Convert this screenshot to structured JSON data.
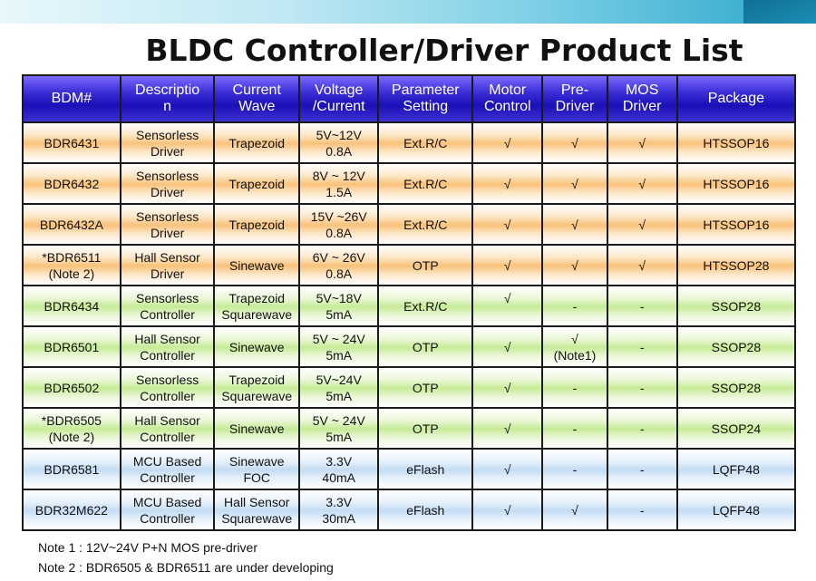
{
  "title": "BLDC Controller/Driver Product List",
  "header": [
    [
      "BDM#"
    ],
    [
      "Descriptio",
      "n"
    ],
    [
      "Current",
      "Wave"
    ],
    [
      "Voltage",
      "/Current"
    ],
    [
      "Parameter",
      "Setting"
    ],
    [
      "Motor",
      "Control"
    ],
    [
      "Pre-",
      "Driver"
    ],
    [
      "MOS",
      "Driver"
    ],
    [
      "Package"
    ]
  ],
  "rows": [
    {
      "theme": "orange",
      "cells": [
        [
          "BDR6431"
        ],
        [
          "Sensorless",
          "Driver"
        ],
        [
          "Trapezoid"
        ],
        [
          "5V~12V",
          "0.8A"
        ],
        [
          "Ext.R/C"
        ],
        [
          "√"
        ],
        [
          "√"
        ],
        [
          "√"
        ],
        [
          "HTSSOP16"
        ]
      ]
    },
    {
      "theme": "orange",
      "cells": [
        [
          "BDR6432"
        ],
        [
          "Sensorless",
          "Driver"
        ],
        [
          "Trapezoid"
        ],
        [
          "8V ~ 12V",
          "1.5A"
        ],
        [
          "Ext.R/C"
        ],
        [
          "√"
        ],
        [
          "√"
        ],
        [
          "√"
        ],
        [
          "HTSSOP16"
        ]
      ]
    },
    {
      "theme": "orange",
      "cells": [
        [
          "BDR6432A"
        ],
        [
          "Sensorless",
          "Driver"
        ],
        [
          "Trapezoid"
        ],
        [
          "15V ~26V",
          "0.8A"
        ],
        [
          "Ext.R/C"
        ],
        [
          "√"
        ],
        [
          "√"
        ],
        [
          "√"
        ],
        [
          "HTSSOP16"
        ]
      ]
    },
    {
      "theme": "orange",
      "cells": [
        [
          "*BDR6511",
          "(Note 2)"
        ],
        [
          "Hall Sensor",
          "Driver"
        ],
        [
          "Sinewave"
        ],
        [
          "6V ~ 26V",
          "0.8A"
        ],
        [
          "OTP"
        ],
        [
          "√"
        ],
        [
          "√"
        ],
        [
          "√"
        ],
        [
          "HTSSOP28"
        ]
      ]
    },
    {
      "theme": "green",
      "cells": [
        [
          "BDR6434"
        ],
        [
          "Sensorless",
          "Controller"
        ],
        [
          "Trapezoid",
          "Squarewave"
        ],
        [
          "5V~18V",
          "5mA"
        ],
        [
          "Ext.R/C"
        ],
        [
          "√",
          ""
        ],
        [
          "-"
        ],
        [
          "-"
        ],
        [
          "SSOP28"
        ]
      ]
    },
    {
      "theme": "green",
      "cells": [
        [
          "BDR6501"
        ],
        [
          "Hall Sensor",
          "Controller"
        ],
        [
          "Sinewave"
        ],
        [
          "5V ~ 24V",
          "5mA"
        ],
        [
          "OTP"
        ],
        [
          "√"
        ],
        [
          "√",
          "(Note1)"
        ],
        [
          "-"
        ],
        [
          "SSOP28"
        ]
      ]
    },
    {
      "theme": "green",
      "cells": [
        [
          "BDR6502"
        ],
        [
          "Sensorless",
          "Controller"
        ],
        [
          "Trapezoid",
          "Squarewave"
        ],
        [
          "5V~24V",
          "5mA"
        ],
        [
          "OTP"
        ],
        [
          "√"
        ],
        [
          "-"
        ],
        [
          "-"
        ],
        [
          "SSOP28"
        ]
      ]
    },
    {
      "theme": "green",
      "cells": [
        [
          "*BDR6505",
          "(Note 2)"
        ],
        [
          "Hall Sensor",
          "Controller"
        ],
        [
          "Sinewave"
        ],
        [
          "5V ~ 24V",
          "5mA"
        ],
        [
          "OTP"
        ],
        [
          "√"
        ],
        [
          "-"
        ],
        [
          "-"
        ],
        [
          "SSOP24"
        ]
      ]
    },
    {
      "theme": "blue",
      "cells": [
        [
          "BDR6581"
        ],
        [
          "MCU Based",
          "Controller"
        ],
        [
          "Sinewave",
          "FOC"
        ],
        [
          "3.3V",
          "40mA"
        ],
        [
          "eFlash"
        ],
        [
          "√"
        ],
        [
          "-"
        ],
        [
          "-"
        ],
        [
          "LQFP48"
        ]
      ]
    },
    {
      "theme": "blue",
      "cells": [
        [
          "BDR32M622"
        ],
        [
          "MCU Based",
          "Controller"
        ],
        [
          "Hall Sensor",
          "Squarewave"
        ],
        [
          "3.3V",
          "30mA"
        ],
        [
          "eFlash"
        ],
        [
          "√"
        ],
        [
          "√"
        ],
        [
          "-"
        ],
        [
          "LQFP48"
        ]
      ]
    }
  ],
  "notes": [
    "Note 1 : 12V~24V P+N MOS pre-driver",
    "Note 2 : BDR6505 & BDR6511 are under developing"
  ]
}
